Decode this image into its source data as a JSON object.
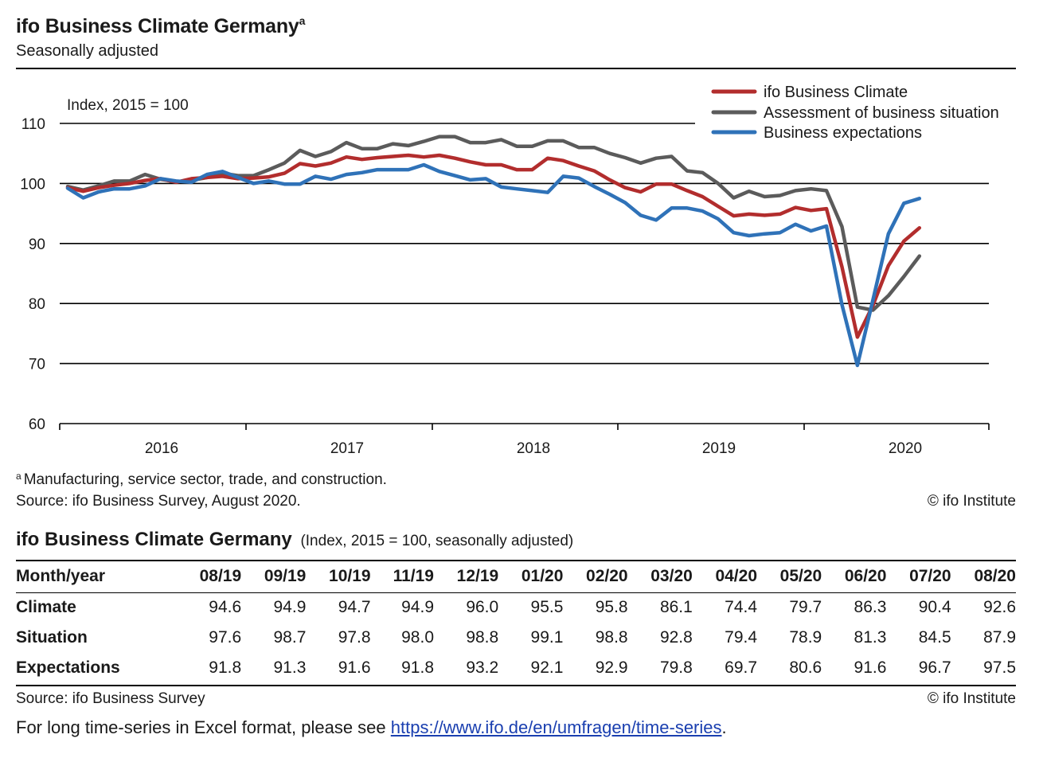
{
  "header": {
    "title": "ifo Business Climate Germany",
    "title_mark": "a",
    "subtitle": "Seasonally adjusted"
  },
  "chart_data": {
    "type": "line",
    "title": "ifo Business Climate Germany",
    "ylabel": "Index, 2015 = 100",
    "xlabel": "",
    "ylim": [
      60,
      110
    ],
    "yticks": [
      60,
      70,
      80,
      90,
      100,
      110
    ],
    "year_labels": [
      "2016",
      "2017",
      "2018",
      "2019",
      "2020"
    ],
    "grid": true,
    "legend_position": "top-right",
    "x_start": "01/16",
    "x_end": "08/20",
    "series": [
      {
        "name": "ifo Business Climate",
        "color": "#b22d2d",
        "values": [
          99.3,
          98.7,
          99.3,
          99.7,
          100.0,
          100.5,
          100.8,
          100.2,
          100.8,
          101.0,
          101.2,
          100.8,
          100.9,
          101.1,
          101.7,
          103.3,
          102.9,
          103.4,
          104.4,
          104.0,
          104.3,
          104.5,
          104.7,
          104.4,
          104.7,
          104.2,
          103.6,
          103.1,
          103.1,
          102.3,
          102.3,
          104.2,
          103.8,
          102.9,
          102.1,
          100.6,
          99.3,
          98.6,
          99.9,
          99.9,
          98.8,
          97.8,
          96.2,
          94.6,
          94.9,
          94.7,
          94.9,
          96.0,
          95.5,
          95.8,
          86.1,
          74.4,
          79.7,
          86.3,
          90.4,
          92.6
        ]
      },
      {
        "name": "Assessment of business situation",
        "color": "#5b5b5b",
        "values": [
          99.5,
          98.9,
          99.6,
          100.4,
          100.4,
          101.5,
          100.7,
          100.3,
          100.5,
          101.0,
          101.7,
          101.3,
          101.3,
          102.3,
          103.4,
          105.5,
          104.5,
          105.3,
          106.8,
          105.8,
          105.8,
          106.6,
          106.3,
          107.0,
          107.8,
          107.8,
          106.8,
          106.8,
          107.3,
          106.2,
          106.2,
          107.1,
          107.1,
          106.0,
          106.0,
          105.0,
          104.3,
          103.4,
          104.2,
          104.5,
          102.1,
          101.8,
          100.0,
          97.6,
          98.7,
          97.8,
          98.0,
          98.8,
          99.1,
          98.8,
          92.8,
          79.4,
          78.9,
          81.3,
          84.5,
          87.9
        ]
      },
      {
        "name": "Business expectations",
        "color": "#2f72b8",
        "values": [
          99.2,
          97.6,
          98.6,
          99.1,
          99.1,
          99.6,
          100.8,
          100.4,
          100.2,
          101.5,
          102.0,
          101.0,
          100.0,
          100.4,
          99.9,
          99.9,
          101.2,
          100.7,
          101.5,
          101.8,
          102.3,
          102.3,
          102.3,
          103.1,
          102.0,
          101.3,
          100.6,
          100.8,
          99.4,
          99.1,
          98.8,
          98.5,
          101.2,
          100.9,
          99.5,
          98.2,
          96.8,
          94.7,
          93.9,
          95.9,
          95.9,
          95.4,
          94.1,
          91.8,
          91.3,
          91.6,
          91.8,
          93.2,
          92.1,
          92.9,
          79.8,
          69.7,
          80.6,
          91.6,
          96.7,
          97.5
        ]
      }
    ]
  },
  "notes": {
    "footnote_mark": "a",
    "footnote": "Manufacturing, service sector, trade, and construction.",
    "chart_source": "Source: ifo Business Survey, August 2020.",
    "chart_copyright": "© ifo Institute"
  },
  "table": {
    "title": "ifo Business Climate Germany",
    "title_sub": "(Index, 2015 = 100, seasonally adjusted)",
    "header_label": "Month/year",
    "months": [
      "08/19",
      "09/19",
      "10/19",
      "11/19",
      "12/19",
      "01/20",
      "02/20",
      "03/20",
      "04/20",
      "05/20",
      "06/20",
      "07/20",
      "08/20"
    ],
    "rows": [
      {
        "label": "Climate",
        "values": [
          "94.6",
          "94.9",
          "94.7",
          "94.9",
          "96.0",
          "95.5",
          "95.8",
          "86.1",
          "74.4",
          "79.7",
          "86.3",
          "90.4",
          "92.6"
        ]
      },
      {
        "label": "Situation",
        "values": [
          "97.6",
          "98.7",
          "97.8",
          "98.0",
          "98.8",
          "99.1",
          "98.8",
          "92.8",
          "79.4",
          "78.9",
          "81.3",
          "84.5",
          "87.9"
        ]
      },
      {
        "label": "Expectations",
        "values": [
          "91.8",
          "91.3",
          "91.6",
          "91.8",
          "93.2",
          "92.1",
          "92.9",
          "79.8",
          "69.7",
          "80.6",
          "91.6",
          "96.7",
          "97.5"
        ]
      }
    ],
    "source": "Source: ifo Business Survey",
    "copyright": "© ifo Institute"
  },
  "footer": {
    "text": "For long time-series in Excel format, please see",
    "link_text": "https://www.ifo.de/en/umfragen/time-series",
    "end": "."
  }
}
